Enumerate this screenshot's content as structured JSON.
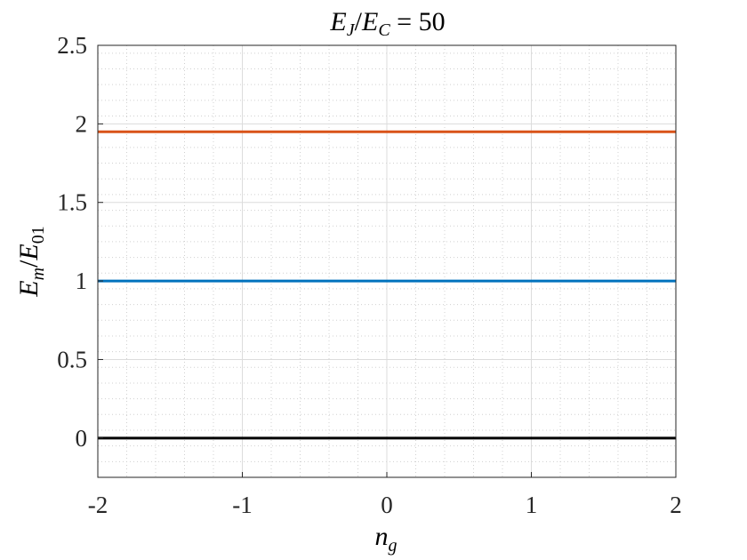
{
  "chart_data": {
    "type": "line",
    "title_parts": {
      "a": "E",
      "a_sub": "J",
      "slash": "/",
      "b": "E",
      "b_sub": "C",
      "eq": " = 50"
    },
    "xlabel_parts": {
      "base": "n",
      "sub": "g"
    },
    "ylabel_parts": {
      "a": "E",
      "a_sub": "m",
      "slash": "/",
      "b": "E",
      "b_sub": "01"
    },
    "xlim": [
      -2,
      2
    ],
    "ylim": [
      -0.25,
      2.5
    ],
    "xticks": [
      -2,
      -1,
      0,
      1,
      2
    ],
    "xtick_labels": [
      "-2",
      "-1",
      "0",
      "1",
      "2"
    ],
    "yticks": [
      0,
      0.5,
      1,
      1.5,
      2,
      2.5
    ],
    "ytick_labels": [
      "0",
      "0.5",
      "1",
      "1.5",
      "2",
      "2.5"
    ],
    "grid": true,
    "minor_grid": true,
    "series": [
      {
        "x": [
          -2,
          2
        ],
        "y": [
          0,
          0
        ],
        "color": "#000000"
      },
      {
        "x": [
          -2,
          2
        ],
        "y": [
          1.0,
          1.0
        ],
        "color": "#0072BD"
      },
      {
        "x": [
          -2,
          2
        ],
        "y": [
          1.95,
          1.95
        ],
        "color": "#D95319"
      }
    ]
  }
}
